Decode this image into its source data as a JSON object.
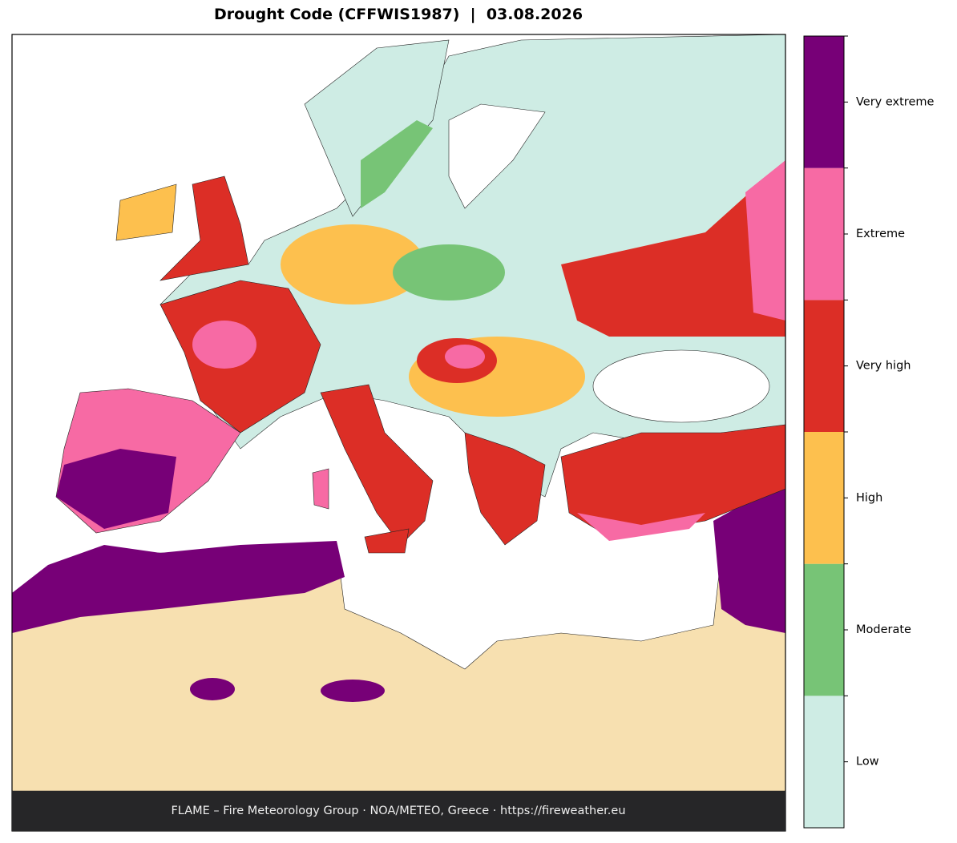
{
  "title": "Drought Code (CFFWIS1987)  |  03.08.2026",
  "footer": "FLAME – Fire Meteorology Group · NOA/METEO, Greece · https://fireweather.eu",
  "legend": {
    "categories": [
      {
        "label": "Low",
        "color": "#ceece4"
      },
      {
        "label": "Moderate",
        "color": "#77c476"
      },
      {
        "label": "High",
        "color": "#fdc04e"
      },
      {
        "label": "Very high",
        "color": "#dc2e26"
      },
      {
        "label": "Extreme",
        "color": "#f76aa4"
      },
      {
        "label": "Very extreme",
        "color": "#770077"
      }
    ]
  }
}
